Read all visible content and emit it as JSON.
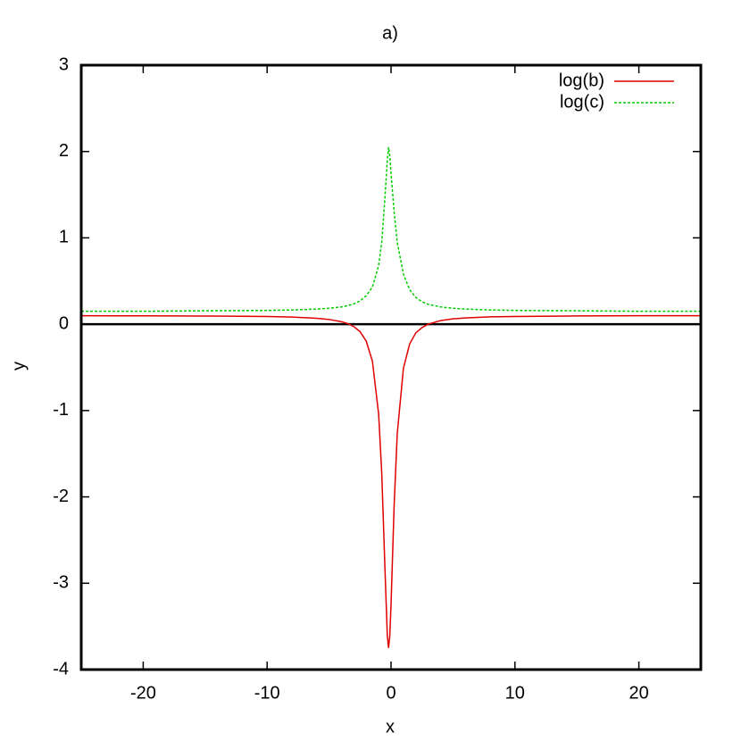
{
  "chart_data": {
    "type": "line",
    "title": "a)",
    "xlabel": "x",
    "ylabel": "y",
    "x": [
      -25,
      -20,
      -15,
      -10,
      -8,
      -6,
      -5,
      -4,
      -3.5,
      -3,
      -2.5,
      -2,
      -1.5,
      -1,
      -0.75,
      -0.5,
      -0.3,
      -0.2,
      -0.1,
      0,
      0.25,
      0.5,
      1,
      1.5,
      2,
      2.5,
      3,
      4,
      5,
      6,
      8,
      10,
      15,
      20,
      25
    ],
    "series": [
      {
        "name": "log(b)",
        "color": "#e00000",
        "dashed": false,
        "values": [
          0.098,
          0.097,
          0.095,
          0.089,
          0.083,
          0.069,
          0.055,
          0.029,
          0.007,
          -0.028,
          -0.087,
          -0.196,
          -0.43,
          -1.04,
          -1.72,
          -2.79,
          -3.61,
          -3.75,
          -3.61,
          -3.25,
          -2.1,
          -1.27,
          -0.51,
          -0.23,
          -0.1,
          -0.04,
          0.001,
          0.042,
          0.062,
          0.073,
          0.085,
          0.09,
          0.096,
          0.098,
          0.098
        ]
      },
      {
        "name": "log(c)",
        "color": "#00cc00",
        "dashed": true,
        "values": [
          0.15,
          0.15,
          0.155,
          0.16,
          0.165,
          0.175,
          0.185,
          0.2,
          0.215,
          0.235,
          0.27,
          0.33,
          0.43,
          0.68,
          0.95,
          1.45,
          1.9,
          2.05,
          1.95,
          1.75,
          1.3,
          0.95,
          0.58,
          0.4,
          0.31,
          0.26,
          0.23,
          0.2,
          0.185,
          0.175,
          0.165,
          0.16,
          0.155,
          0.15,
          0.15
        ]
      }
    ],
    "xlim": [
      -25,
      25
    ],
    "xticks": [
      -20,
      -10,
      0,
      10,
      20
    ],
    "ylim": [
      -4,
      3
    ],
    "yticks": [
      -4,
      -3,
      -2,
      -1,
      0,
      1,
      2,
      3
    ],
    "zeroaxis": true,
    "legend": "top-right"
  }
}
